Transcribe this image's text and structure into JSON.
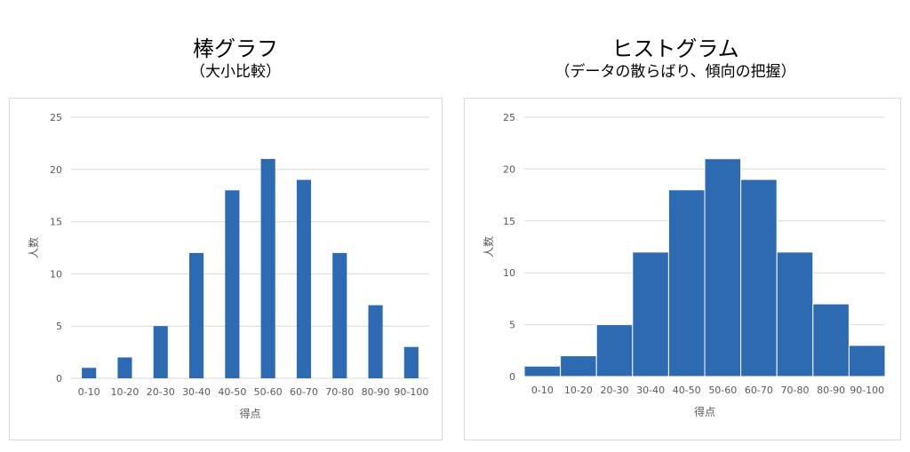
{
  "headings": {
    "left_title": "棒グラフ",
    "left_subtitle": "（大小比較）",
    "right_title": "ヒストグラム",
    "right_subtitle": "（データの散らばり、傾向の把握）"
  },
  "chart_data": [
    {
      "type": "bar",
      "title": "",
      "xlabel": "得点",
      "ylabel": "人数",
      "categories": [
        "0-10",
        "10-20",
        "20-30",
        "30-40",
        "40-50",
        "50-60",
        "60-70",
        "70-80",
        "80-90",
        "90-100"
      ],
      "values": [
        1,
        2,
        5,
        12,
        18,
        21,
        19,
        12,
        7,
        3
      ],
      "ylim": [
        0,
        25
      ],
      "yticks": [
        0,
        5,
        10,
        15,
        20,
        25
      ],
      "grid": true,
      "color": "#2e6ab1"
    },
    {
      "type": "bar",
      "subtype": "histogram",
      "title": "",
      "xlabel": "得点",
      "ylabel": "人数",
      "categories": [
        "0-10",
        "10-20",
        "20-30",
        "30-40",
        "40-50",
        "50-60",
        "60-70",
        "70-80",
        "80-90",
        "90-100"
      ],
      "values": [
        1,
        2,
        5,
        12,
        18,
        21,
        19,
        12,
        7,
        3
      ],
      "ylim": [
        0,
        25
      ],
      "yticks": [
        0,
        5,
        10,
        15,
        20,
        25
      ],
      "grid": true,
      "color": "#2e6ab1"
    }
  ]
}
